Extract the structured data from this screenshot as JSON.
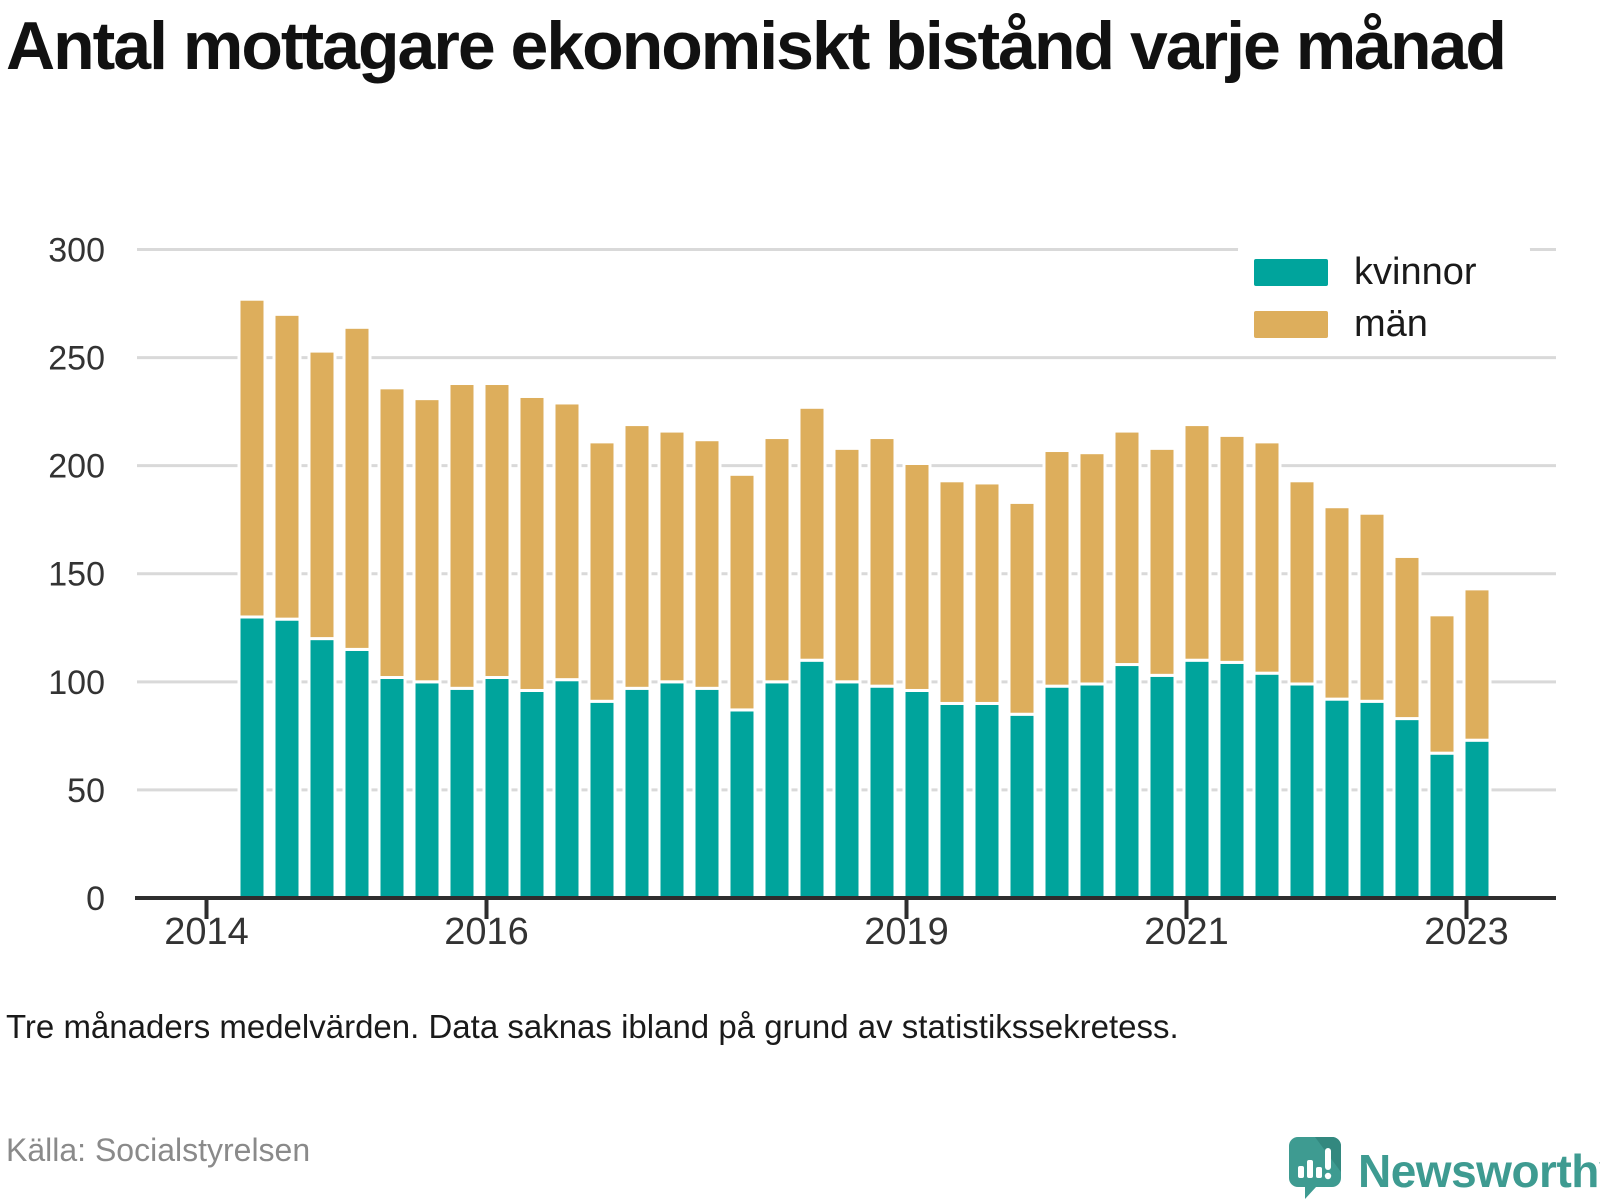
{
  "title": "Antal mottagare ekonomiskt bistånd varje månad",
  "footnote": "Tre månaders medelvärden. Data saknas ibland på grund av statistikssekretess.",
  "source": "Källa: Socialstyrelsen",
  "logo": {
    "wordmark": "Newsworthy",
    "icon": "speech-bubble-bar-chart",
    "color": "#3e9b91"
  },
  "colors": {
    "kvinnor": "#00a49c",
    "man": "#ddae5c",
    "gridline": "#d9d9d9",
    "axis": "#2e2e2e"
  },
  "chart_data": {
    "type": "bar",
    "stacked": true,
    "title": "Antal mottagare ekonomiskt bistånd varje månad",
    "xlabel": "",
    "ylabel": "",
    "ylim": [
      0,
      300
    ],
    "ytick_step": 50,
    "yticks": [
      0,
      50,
      100,
      150,
      200,
      250,
      300
    ],
    "grid": true,
    "legend_position": "top-right",
    "categories": [
      "2014 Q2",
      "2014 Q3",
      "2014 Q4",
      "2015 Q1",
      "2015 Q2",
      "2015 Q3",
      "2015 Q4",
      "2016 Q1",
      "2016 Q2",
      "2016 Q3",
      "2016 Q4",
      "2017 Q1",
      "2017 Q2",
      "2017 Q3",
      "2017 Q4",
      "2018 Q1",
      "2018 Q2",
      "2018 Q3",
      "2018 Q4",
      "2019 Q1",
      "2019 Q2",
      "2019 Q3",
      "2019 Q4",
      "2020 Q1",
      "2020 Q2",
      "2020 Q3",
      "2020 Q4",
      "2021 Q1",
      "2021 Q2",
      "2021 Q3",
      "2021 Q4",
      "2022 Q1",
      "2022 Q2",
      "2022 Q3",
      "2022 Q4",
      "2023 Q1"
    ],
    "xticks": [
      {
        "label": "2014",
        "year": 2014
      },
      {
        "label": "2016",
        "year": 2016
      },
      {
        "label": "2019",
        "year": 2019
      },
      {
        "label": "2021",
        "year": 2021
      },
      {
        "label": "2023",
        "year": 2023
      }
    ],
    "series": [
      {
        "name": "kvinnor",
        "color": "#00a49c",
        "values": [
          130,
          129,
          120,
          115,
          102,
          100,
          97,
          102,
          96,
          101,
          91,
          97,
          100,
          97,
          87,
          100,
          110,
          100,
          98,
          96,
          90,
          90,
          85,
          98,
          99,
          108,
          103,
          110,
          109,
          104,
          99,
          92,
          91,
          83,
          67,
          73
        ]
      },
      {
        "name": "män",
        "color": "#ddae5c",
        "values": [
          147,
          141,
          133,
          149,
          134,
          131,
          141,
          136,
          136,
          128,
          120,
          122,
          116,
          115,
          109,
          113,
          117,
          108,
          115,
          105,
          103,
          102,
          98,
          109,
          107,
          108,
          105,
          109,
          105,
          107,
          94,
          89,
          87,
          75,
          64,
          70
        ]
      }
    ]
  }
}
